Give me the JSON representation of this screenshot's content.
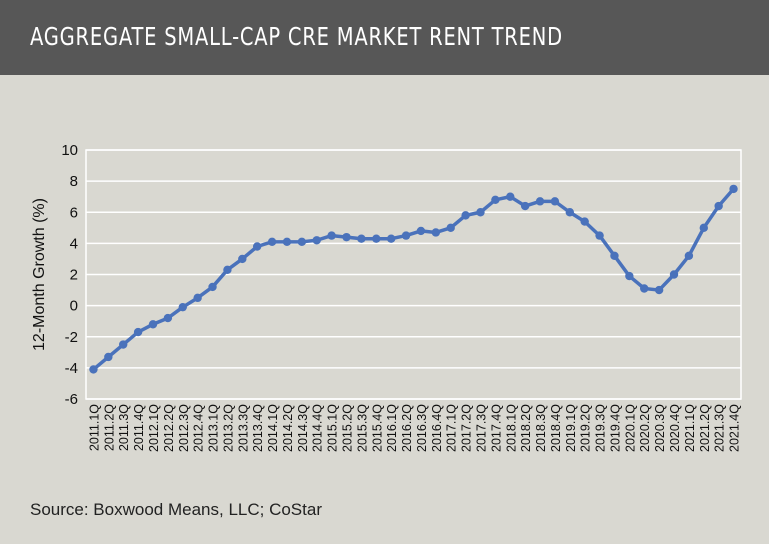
{
  "header": {
    "title": "AGGREGATE SMALL-CAP CRE MARKET RENT TREND"
  },
  "source": "Source: Boxwood Means, LLC; CoStar",
  "chart_data": {
    "type": "line",
    "title": "",
    "xlabel": "",
    "ylabel": "12-Month Growth (%)",
    "ylim": [
      -6,
      10
    ],
    "yticks": [
      -6,
      -4,
      -2,
      0,
      2,
      4,
      6,
      8,
      10
    ],
    "grid": true,
    "line_color": "#4a72bb",
    "categories": [
      "2011.1Q",
      "2011.2Q",
      "2011.3Q",
      "2011.4Q",
      "2012.1Q",
      "2012.2Q",
      "2012.3Q",
      "2012.4Q",
      "2013.1Q",
      "2013.2Q",
      "2013.3Q",
      "2013.4Q",
      "2014.1Q",
      "2014.2Q",
      "2014.3Q",
      "2014.4Q",
      "2015.1Q",
      "2015.2Q",
      "2015.3Q",
      "2015.4Q",
      "2016.1Q",
      "2016.2Q",
      "2016.3Q",
      "2016.4Q",
      "2017.1Q",
      "2017.2Q",
      "2017.3Q",
      "2017.4Q",
      "2018.1Q",
      "2018.2Q",
      "2018.3Q",
      "2018.4Q",
      "2019.1Q",
      "2019.2Q",
      "2019.3Q",
      "2019.4Q",
      "2020.1Q",
      "2020.2Q",
      "2020.3Q",
      "2020.4Q",
      "2021.1Q",
      "2021.2Q",
      "2021.3Q",
      "2021.4Q"
    ],
    "values": [
      -4.1,
      -3.3,
      -2.5,
      -1.7,
      -1.2,
      -0.8,
      -0.1,
      0.5,
      1.2,
      2.3,
      3.0,
      3.8,
      4.1,
      4.1,
      4.1,
      4.2,
      4.5,
      4.4,
      4.3,
      4.3,
      4.3,
      4.5,
      4.8,
      4.7,
      5.0,
      5.8,
      6.0,
      6.8,
      7.0,
      6.4,
      6.7,
      6.7,
      6.0,
      5.4,
      4.5,
      3.2,
      1.9,
      1.1,
      1.0,
      2.0,
      3.2,
      5.0,
      6.4,
      7.5
    ]
  }
}
